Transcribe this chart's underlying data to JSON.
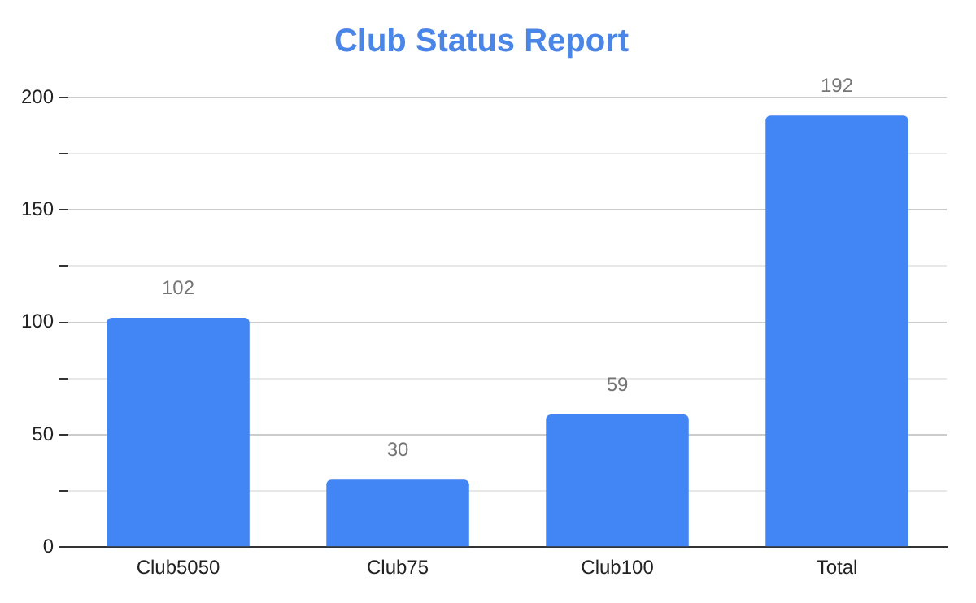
{
  "chart_data": {
    "type": "bar",
    "title": "Club Status Report",
    "categories": [
      "Club5050",
      "Club75",
      "Club100",
      "Total"
    ],
    "values": [
      102,
      30,
      59,
      192
    ],
    "color": "#4285f4",
    "ylim": [
      0,
      200
    ],
    "yticks": [
      0,
      {
        "value": 25,
        "label": null
      },
      50,
      {
        "value": 75,
        "label": null
      },
      100,
      {
        "value": 125,
        "label": null
      },
      150,
      {
        "value": 175,
        "label": null
      },
      200
    ],
    "grid": true,
    "data_labels": true
  }
}
